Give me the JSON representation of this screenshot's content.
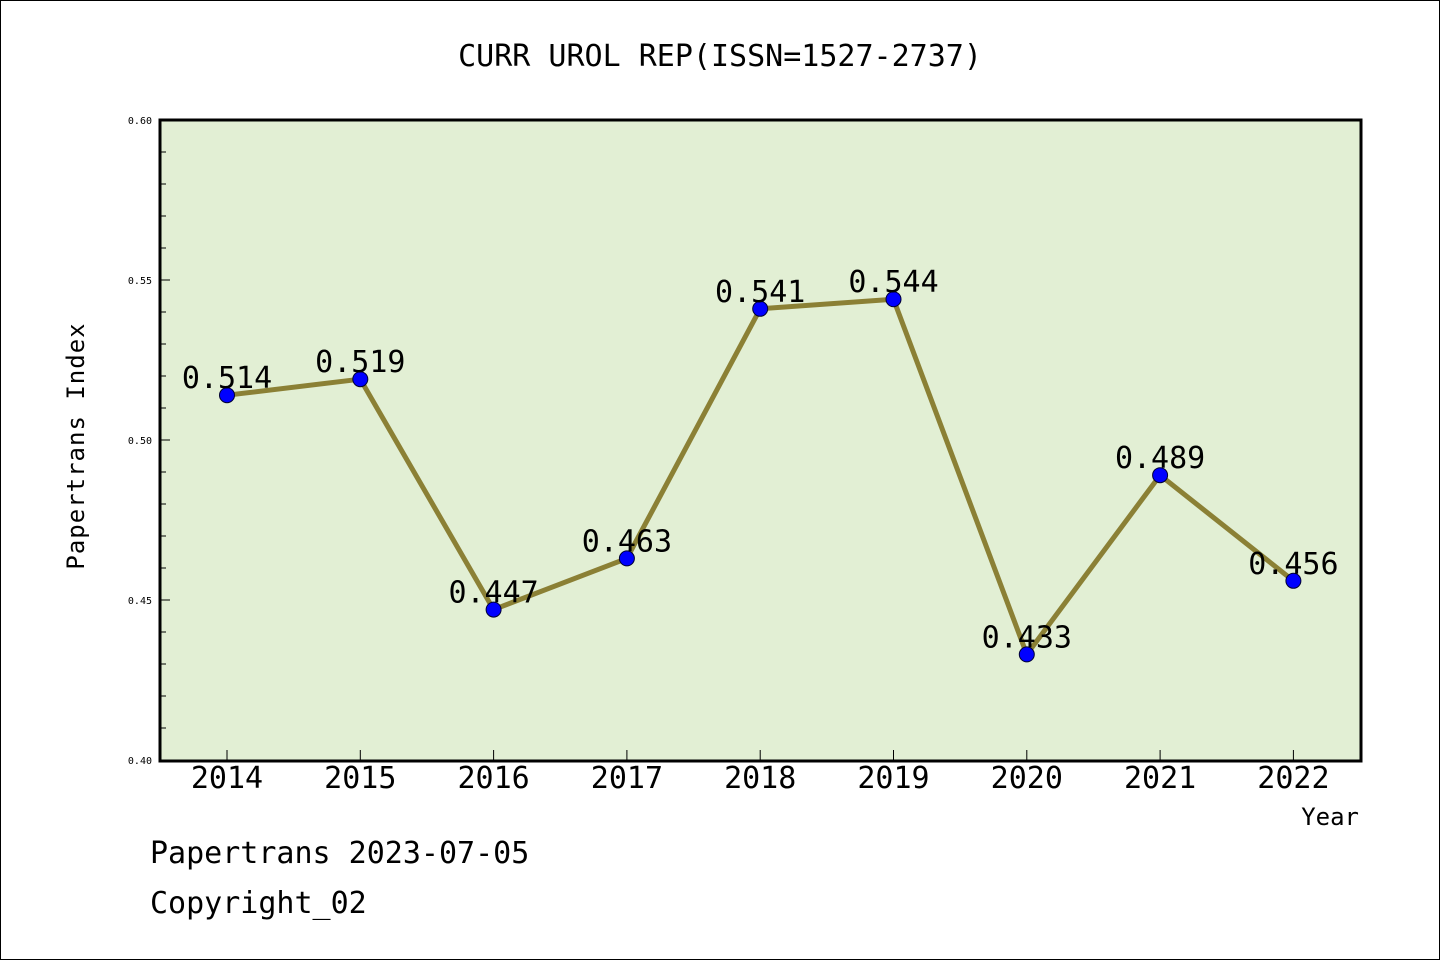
{
  "chart_data": {
    "type": "line",
    "title": "CURR UROL REP(ISSN=1527-2737)",
    "xlabel": "Year",
    "ylabel": "Papertrans Index",
    "categories": [
      "2014",
      "2015",
      "2016",
      "2017",
      "2018",
      "2019",
      "2020",
      "2021",
      "2022"
    ],
    "series": [
      {
        "values": [
          0.514,
          0.519,
          0.447,
          0.463,
          0.541,
          0.544,
          0.433,
          0.489,
          0.456
        ],
        "labels": [
          "0.514",
          "0.519",
          "0.447",
          "0.463",
          "0.541",
          "0.544",
          "0.433",
          "0.489",
          "0.456"
        ],
        "line_color": "#8b8035",
        "marker_color": "#0000ff"
      }
    ],
    "ylim": [
      0.4,
      0.6
    ],
    "yticks": [
      "0.40",
      "0.45",
      "0.50",
      "0.55",
      "0.60"
    ],
    "plot_background": "#e2efd4",
    "grid": false,
    "legend": "none"
  },
  "footer": {
    "line1": "Papertrans 2023-07-05",
    "line2": "Copyright_02"
  }
}
